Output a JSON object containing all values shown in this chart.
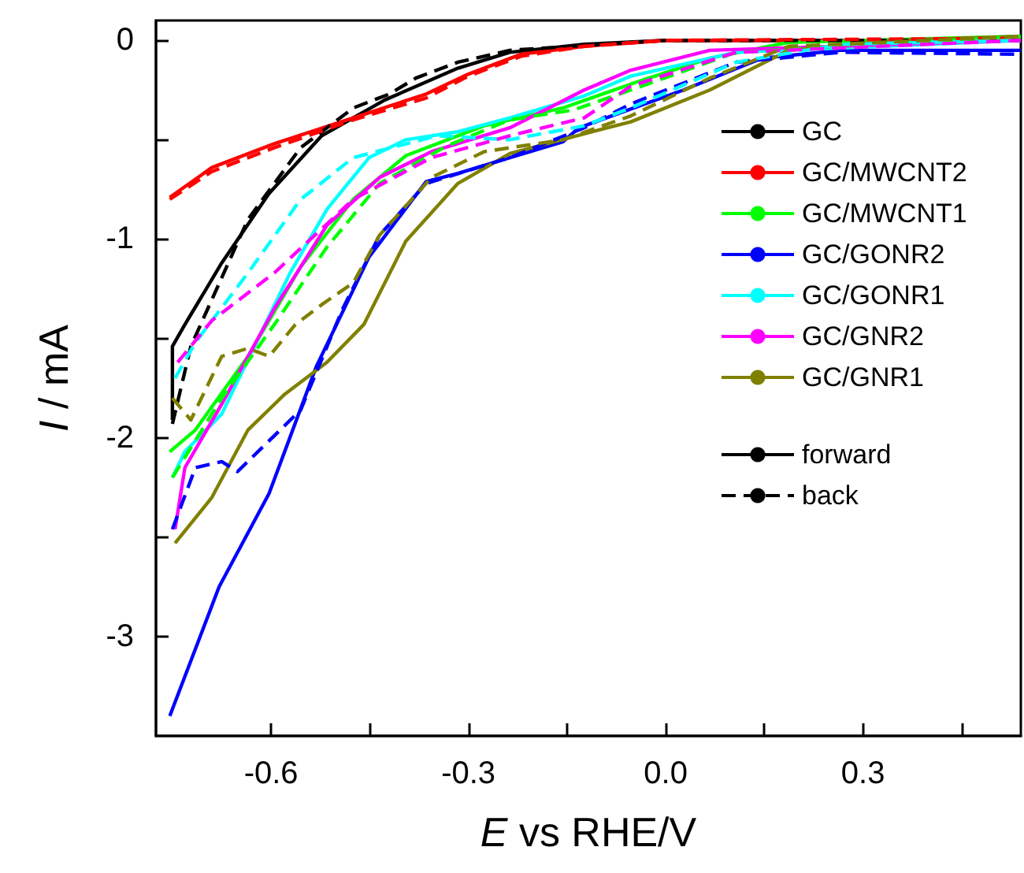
{
  "chart_data": {
    "type": "line",
    "xlabel": "E vs RHE/V",
    "ylabel": "I / mA",
    "xlim": [
      -0.775,
      0.54
    ],
    "ylim": [
      -3.5,
      0.1
    ],
    "xticks": [
      -0.6,
      {
        "value": -0.45,
        "label": null
      },
      -0.3,
      {
        "value": -0.15,
        "label": null
      },
      {
        "value": 0,
        "label": "0.0"
      },
      {
        "value": 0.15,
        "label": null
      },
      0.3,
      {
        "value": 0.45,
        "label": null
      }
    ],
    "yticks": [
      0,
      {
        "value": -0.5,
        "label": null
      },
      -1,
      {
        "value": -1.5,
        "label": null
      },
      -2,
      {
        "value": -2.5,
        "label": null
      },
      -3
    ],
    "grid": false,
    "legend": "right",
    "marker": "none",
    "series": [
      {
        "name": "GC",
        "color": "#000000",
        "line_style": "solid",
        "x": [
          -0.75,
          -0.75,
          -0.731,
          -0.675,
          -0.603,
          -0.523,
          -0.427,
          -0.316,
          -0.237,
          -0.124,
          0,
          0.54
        ],
        "values": [
          -1.91,
          -1.54,
          -1.43,
          -1.12,
          -0.77,
          -0.48,
          -0.3,
          -0.14,
          -0.06,
          -0.02,
          0,
          0
        ]
      },
      {
        "name": "GC/MWCNT2",
        "color": "#ff0000",
        "line_style": "solid",
        "x": [
          -0.754,
          -0.69,
          -0.595,
          -0.475,
          -0.364,
          -0.3,
          -0.22,
          -0.124,
          0,
          0.54
        ],
        "values": [
          -0.79,
          -0.64,
          -0.52,
          -0.39,
          -0.27,
          -0.17,
          -0.07,
          -0.03,
          0,
          0
        ]
      },
      {
        "name": "GC/MWCNT1",
        "color": "#00ff00",
        "line_style": "solid",
        "x": [
          -0.754,
          -0.715,
          -0.635,
          -0.555,
          -0.475,
          -0.395,
          -0.276,
          -0.156,
          -0.053,
          0.067,
          0.187,
          0.54
        ],
        "values": [
          -2.07,
          -1.96,
          -1.59,
          -1.14,
          -0.8,
          -0.58,
          -0.43,
          -0.34,
          -0.22,
          -0.09,
          -0.01,
          0.02
        ]
      },
      {
        "name": "GC/GONR2",
        "color": "#0000ff",
        "line_style": "solid",
        "x": [
          -0.754,
          -0.679,
          -0.603,
          -0.531,
          -0.451,
          -0.364,
          -0.316,
          -0.237,
          -0.156,
          -0.132,
          0.027,
          0.146,
          0.266,
          0.54
        ],
        "values": [
          -3.4,
          -2.75,
          -2.28,
          -1.64,
          -1.09,
          -0.71,
          -0.67,
          -0.59,
          -0.51,
          -0.44,
          -0.25,
          -0.09,
          -0.05,
          -0.05
        ]
      },
      {
        "name": "GC/GONR1",
        "color": "#00ffff",
        "line_style": "solid",
        "x": [
          -0.75,
          -0.731,
          -0.675,
          -0.571,
          -0.515,
          -0.451,
          -0.395,
          -0.316,
          -0.237,
          -0.124,
          -0.053,
          0.107,
          0.54
        ],
        "values": [
          -2.2,
          -2.07,
          -1.88,
          -1.17,
          -0.85,
          -0.59,
          -0.5,
          -0.46,
          -0.39,
          -0.28,
          -0.18,
          -0.06,
          0
        ]
      },
      {
        "name": "GC/GNR2",
        "color": "#ff00ff",
        "line_style": "solid",
        "x": [
          -0.746,
          -0.731,
          -0.675,
          -0.595,
          -0.515,
          -0.435,
          -0.356,
          -0.237,
          -0.124,
          -0.053,
          0.067,
          0.54
        ],
        "values": [
          -2.46,
          -2.15,
          -1.83,
          -1.35,
          -0.93,
          -0.69,
          -0.56,
          -0.44,
          -0.25,
          -0.15,
          -0.05,
          0
        ]
      },
      {
        "name": "GC/GNR1",
        "color": "#808000",
        "line_style": "solid",
        "x": [
          -0.746,
          -0.69,
          -0.635,
          -0.579,
          -0.515,
          -0.459,
          -0.395,
          -0.316,
          -0.237,
          -0.124,
          -0.053,
          0.067,
          0.187,
          0.346,
          0.54
        ],
        "values": [
          -2.53,
          -2.3,
          -1.96,
          -1.78,
          -1.62,
          -1.43,
          -1.01,
          -0.72,
          -0.57,
          -0.47,
          -0.41,
          -0.25,
          -0.05,
          0,
          0.02
        ]
      },
      {
        "color": "#000000",
        "line_style": "dashed",
        "x": [
          -0.75,
          -0.722,
          -0.635,
          -0.555,
          -0.475,
          -0.42,
          -0.38,
          -0.316,
          -0.237,
          0,
          0.54
        ],
        "values": [
          -1.93,
          -1.54,
          -0.9,
          -0.54,
          -0.34,
          -0.27,
          -0.19,
          -0.11,
          -0.05,
          0,
          0
        ]
      },
      {
        "color": "#ff0000",
        "line_style": "dashed",
        "x": [
          -0.754,
          -0.69,
          -0.595,
          -0.475,
          -0.364,
          -0.3,
          -0.22,
          -0.124,
          0,
          0.54
        ],
        "values": [
          -0.8,
          -0.66,
          -0.54,
          -0.4,
          -0.29,
          -0.18,
          -0.08,
          -0.03,
          0,
          0.01
        ]
      },
      {
        "color": "#00ff00",
        "line_style": "dashed",
        "x": [
          -0.75,
          -0.675,
          -0.595,
          -0.515,
          -0.435,
          -0.332,
          -0.237,
          -0.14,
          -0.053,
          0.107,
          0.54
        ],
        "values": [
          -2.2,
          -1.8,
          -1.43,
          -1.04,
          -0.72,
          -0.53,
          -0.4,
          -0.35,
          -0.25,
          -0.06,
          0.02
        ]
      },
      {
        "color": "#0000ff",
        "line_style": "dashed",
        "x": [
          -0.75,
          -0.715,
          -0.675,
          -0.651,
          -0.555,
          -0.491,
          -0.435,
          -0.364,
          -0.237,
          -0.124,
          -0.053,
          0.107,
          0.266,
          0.54
        ],
        "values": [
          -2.46,
          -2.15,
          -2.12,
          -2.17,
          -1.86,
          -1.35,
          -0.98,
          -0.72,
          -0.59,
          -0.44,
          -0.32,
          -0.11,
          -0.06,
          -0.07
        ]
      },
      {
        "color": "#00ffff",
        "line_style": "dashed",
        "x": [
          -0.746,
          -0.715,
          -0.635,
          -0.555,
          -0.475,
          -0.347,
          -0.237,
          -0.124,
          -0.053,
          0.107,
          0.266,
          0.54
        ],
        "values": [
          -1.7,
          -1.52,
          -1.17,
          -0.8,
          -0.59,
          -0.48,
          -0.5,
          -0.43,
          -0.34,
          -0.11,
          -0.02,
          0
        ]
      },
      {
        "color": "#ff00ff",
        "line_style": "dashed",
        "x": [
          -0.742,
          -0.69,
          -0.595,
          -0.475,
          -0.356,
          -0.237,
          -0.124,
          -0.053,
          0.107,
          0.54
        ],
        "values": [
          -1.62,
          -1.41,
          -1.17,
          -0.8,
          -0.59,
          -0.48,
          -0.39,
          -0.23,
          -0.06,
          0
        ]
      },
      {
        "color": "#808000",
        "line_style": "dashed",
        "x": [
          -0.75,
          -0.722,
          -0.675,
          -0.635,
          -0.603,
          -0.563,
          -0.523,
          -0.475,
          -0.435,
          -0.356,
          -0.276,
          -0.156,
          -0.053,
          0.067,
          0.187,
          0.54
        ],
        "values": [
          -1.8,
          -1.91,
          -1.59,
          -1.55,
          -1.59,
          -1.43,
          -1.33,
          -1.22,
          -0.98,
          -0.69,
          -0.56,
          -0.5,
          -0.38,
          -0.19,
          -0.03,
          0.02
        ]
      },
      {
        "name": "forward",
        "color": "#000000",
        "line_style": "solid"
      },
      {
        "name": "back",
        "color": "#000000",
        "line_style": "dashed"
      }
    ]
  }
}
